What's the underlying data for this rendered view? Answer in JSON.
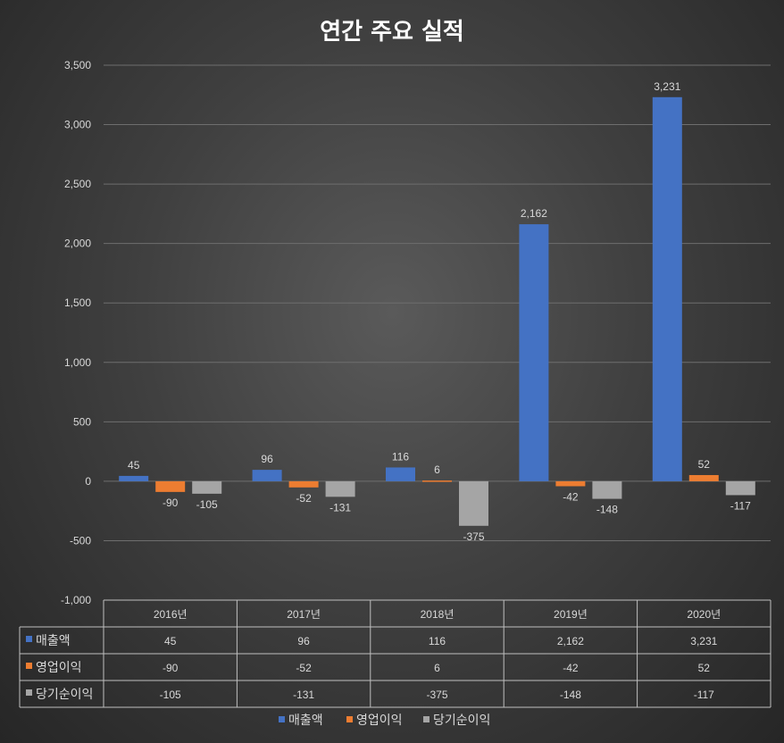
{
  "chart_data": {
    "type": "bar",
    "title": "연간 주요 실적",
    "categories": [
      "2016년",
      "2017년",
      "2018년",
      "2019년",
      "2020년"
    ],
    "series": [
      {
        "name": "매출액",
        "values": [
          45,
          96,
          116,
          2162,
          3231
        ],
        "color": "#4472c4"
      },
      {
        "name": "영업이익",
        "values": [
          -90,
          -52,
          6,
          -42,
          52
        ],
        "color": "#ed7d31"
      },
      {
        "name": "당기순이익",
        "values": [
          -105,
          -131,
          -375,
          -148,
          -117
        ],
        "color": "#a5a5a5"
      }
    ],
    "value_labels": [
      [
        "45",
        "96",
        "116",
        "2,162",
        "3,231"
      ],
      [
        "-90",
        "-52",
        "6",
        "-42",
        "52"
      ],
      [
        "-105",
        "-131",
        "-375",
        "-148",
        "-117"
      ]
    ],
    "ylim": [
      -1000,
      3500
    ],
    "y_ticks": [
      -1000,
      -500,
      0,
      500,
      1000,
      1500,
      2000,
      2500,
      3000,
      3500
    ],
    "y_tick_labels": [
      "-1,000",
      "-500",
      "0",
      "500",
      "1,000",
      "1,500",
      "2,000",
      "2,500",
      "3,000",
      "3,500"
    ],
    "grid": true,
    "data_table": true,
    "legend_position": "bottom",
    "xlabel": "",
    "ylabel": ""
  }
}
